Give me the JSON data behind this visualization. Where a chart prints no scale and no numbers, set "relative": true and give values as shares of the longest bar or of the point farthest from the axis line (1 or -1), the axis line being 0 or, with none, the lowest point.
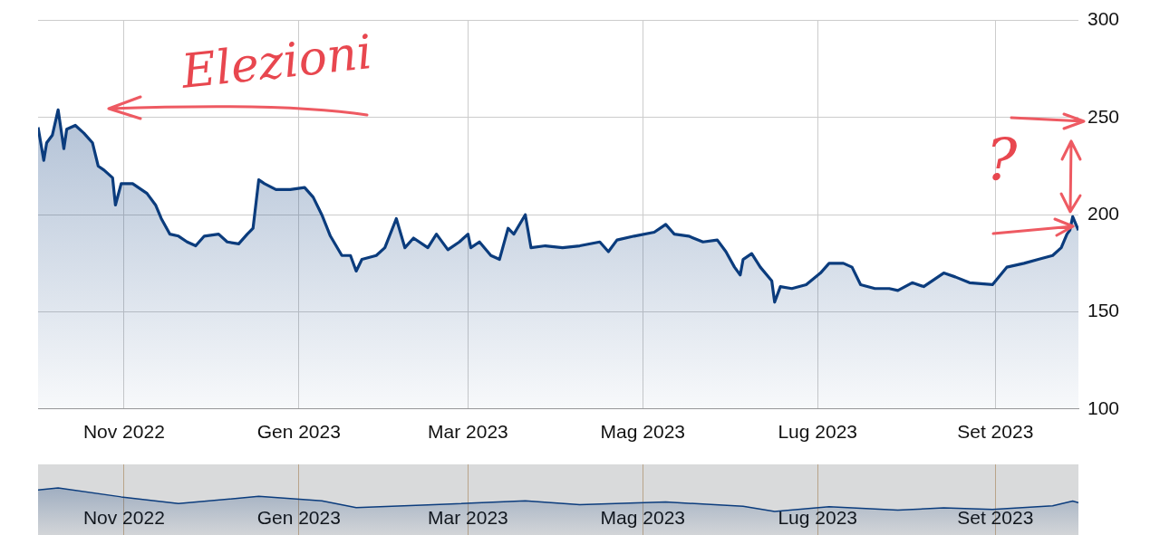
{
  "chart_data": [
    {
      "type": "area",
      "xlim": [
        "2022-10-02",
        "2023-09-30"
      ],
      "ylim": [
        100,
        300
      ],
      "yticks": [
        100,
        150,
        200,
        250,
        300
      ],
      "xticks": [
        {
          "value": "2022-11-01",
          "label": "Nov 2022"
        },
        {
          "value": "2023-01-01",
          "label": "Gen 2023"
        },
        {
          "value": "2023-03-01",
          "label": "Mar 2023"
        },
        {
          "value": "2023-05-01",
          "label": "Mag 2023"
        },
        {
          "value": "2023-07-01",
          "label": "Lug 2023"
        },
        {
          "value": "2023-09-01",
          "label": "Set 2023"
        }
      ],
      "grid": true,
      "legend": false,
      "annotations": [
        "Elezioni",
        "?"
      ],
      "x": [
        "2022-10-02",
        "2022-10-04",
        "2022-10-05",
        "2022-10-07",
        "2022-10-09",
        "2022-10-11",
        "2022-10-12",
        "2022-10-15",
        "2022-10-18",
        "2022-10-21",
        "2022-10-23",
        "2022-10-25",
        "2022-10-28",
        "2022-10-29",
        "2022-10-31",
        "2022-11-04",
        "2022-11-09",
        "2022-11-12",
        "2022-11-14",
        "2022-11-17",
        "2022-11-20",
        "2022-11-23",
        "2022-11-26",
        "2022-11-29",
        "2022-12-04",
        "2022-12-07",
        "2022-12-11",
        "2022-12-14",
        "2022-12-16",
        "2022-12-18",
        "2022-12-20",
        "2022-12-24",
        "2022-12-29",
        "2023-01-03",
        "2023-01-06",
        "2023-01-09",
        "2023-01-12",
        "2023-01-16",
        "2023-01-19",
        "2023-01-21",
        "2023-01-23",
        "2023-01-28",
        "2023-01-31",
        "2023-02-04",
        "2023-02-07",
        "2023-02-10",
        "2023-02-15",
        "2023-02-18",
        "2023-02-22",
        "2023-02-26",
        "2023-03-01",
        "2023-03-02",
        "2023-03-05",
        "2023-03-09",
        "2023-03-12",
        "2023-03-15",
        "2023-03-17",
        "2023-03-21",
        "2023-03-23",
        "2023-03-28",
        "2023-04-03",
        "2023-04-09",
        "2023-04-16",
        "2023-04-19",
        "2023-04-22",
        "2023-04-28",
        "2023-05-05",
        "2023-05-09",
        "2023-05-12",
        "2023-05-17",
        "2023-05-22",
        "2023-05-27",
        "2023-05-30",
        "2023-06-02",
        "2023-06-04",
        "2023-06-05",
        "2023-06-08",
        "2023-06-11",
        "2023-06-15",
        "2023-06-16",
        "2023-06-18",
        "2023-06-22",
        "2023-06-27",
        "2023-07-02",
        "2023-07-05",
        "2023-07-10",
        "2023-07-13",
        "2023-07-16",
        "2023-07-21",
        "2023-07-26",
        "2023-07-29",
        "2023-08-03",
        "2023-08-07",
        "2023-08-14",
        "2023-08-18",
        "2023-08-23",
        "2023-08-31",
        "2023-09-05",
        "2023-09-11",
        "2023-09-16",
        "2023-09-21",
        "2023-09-24",
        "2023-09-26",
        "2023-09-27",
        "2023-09-28",
        "2023-09-30"
      ],
      "series": [
        {
          "color": "#0b3c7d",
          "values": [
            245,
            228,
            237,
            241,
            254,
            234,
            244,
            246,
            242,
            237,
            225,
            223,
            219,
            205,
            216,
            216,
            211,
            205,
            198,
            190,
            189,
            186,
            184,
            189,
            190,
            186,
            185,
            190,
            193,
            218,
            216,
            213,
            213,
            214,
            209,
            200,
            189,
            179,
            179,
            171,
            177,
            179,
            183,
            198,
            183,
            188,
            183,
            190,
            182,
            186,
            190,
            183,
            186,
            179,
            177,
            193,
            190,
            200,
            183,
            184,
            183,
            184,
            186,
            181,
            187,
            189,
            191,
            195,
            190,
            189,
            186,
            187,
            181,
            173,
            169,
            177,
            180,
            173,
            166,
            155,
            163,
            162,
            164,
            170,
            175,
            175,
            173,
            164,
            162,
            162,
            161,
            165,
            163,
            170,
            168,
            165,
            164,
            173,
            175,
            177,
            179,
            183,
            190,
            192,
            199,
            192
          ]
        }
      ]
    },
    {
      "type": "area",
      "relative": true,
      "tick_labels": "x",
      "grid": "x",
      "legend": false,
      "xlim": [
        "2022-10-02",
        "2023-09-30"
      ],
      "xticks": [
        {
          "value": "2022-11-01",
          "label": "Nov 2022"
        },
        {
          "value": "2023-01-01",
          "label": "Gen 2023"
        },
        {
          "value": "2023-03-01",
          "label": "Mar 2023"
        },
        {
          "value": "2023-05-01",
          "label": "Mag 2023"
        },
        {
          "value": "2023-07-01",
          "label": "Lug 2023"
        },
        {
          "value": "2023-09-01",
          "label": "Set 2023"
        }
      ],
      "x": [
        "2022-10-02",
        "2022-10-09",
        "2022-10-31",
        "2022-11-20",
        "2022-12-18",
        "2023-01-09",
        "2023-01-21",
        "2023-02-15",
        "2023-03-21",
        "2023-04-09",
        "2023-05-09",
        "2023-06-05",
        "2023-06-16",
        "2023-07-05",
        "2023-07-29",
        "2023-08-14",
        "2023-08-31",
        "2023-09-21",
        "2023-09-28",
        "2023-09-30"
      ],
      "series": [
        {
          "color": "#0b3c7d",
          "values": [
            0.91,
            1,
            0.62,
            0.34,
            0.64,
            0.45,
            0.16,
            0.28,
            0.45,
            0.29,
            0.4,
            0.22,
            0,
            0.2,
            0.06,
            0.15,
            0.09,
            0.24,
            0.44,
            0.37
          ]
        }
      ]
    }
  ]
}
